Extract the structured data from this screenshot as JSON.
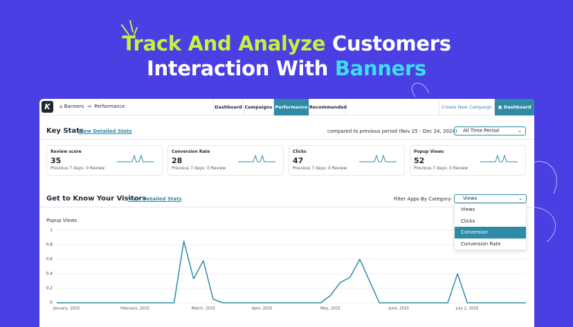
{
  "headline": {
    "line1_highlight": "Track And Analyze",
    "line1_rest": "Customers",
    "line2_rest": "Interaction With",
    "line2_highlight": "Banners"
  },
  "nav": {
    "logo": "K",
    "breadcrumb": [
      "Banners",
      "Performance"
    ],
    "tabs": [
      "Dashboard",
      "Campaigns",
      "Performance",
      "Recommended"
    ],
    "active_tab": 2,
    "create_link": "Create New Campaign",
    "dashboard_button": "Dashboard"
  },
  "key_stats": {
    "title": "Key Stats",
    "link": "View Detailed Stats",
    "comparison": "compared to previous period (Nov 25 - Dec 24, 2024)",
    "period": "All Time Period",
    "cards": [
      {
        "label": "Review score",
        "value": 35,
        "note": "Previous 7 days: 0 Review"
      },
      {
        "label": "Conversion Rate",
        "value": 28,
        "note": "Previous 7 days: 0 Review"
      },
      {
        "label": "Clicks",
        "value": 47,
        "note": "Previous 7 days: 0 Review"
      },
      {
        "label": "Popup Views",
        "value": 52,
        "note": "Previous 7 days: 0 Review"
      }
    ]
  },
  "visitors": {
    "title": "Get to Know Your Visitors",
    "link": "View Detailed Stats",
    "filter_label": "Filter Apps By Category:",
    "filter_value": "Views",
    "options": [
      "Views",
      "Clicks",
      "Conversion",
      "Conversion Rate"
    ],
    "highlighted_option": 2
  },
  "chart_data": {
    "type": "line",
    "y_label": "Popup Views",
    "categories": [
      null,
      "January, 2025",
      null,
      null,
      null,
      null,
      null,
      null,
      "February, 2025",
      null,
      null,
      null,
      null,
      null,
      null,
      "March, 2025",
      null,
      null,
      null,
      null,
      null,
      "April, 2025",
      null,
      null,
      null,
      null,
      null,
      null,
      "May, 2025",
      null,
      null,
      null,
      null,
      null,
      null,
      "June, 2025",
      null,
      null,
      null,
      null,
      null,
      null,
      "July 2, 2025",
      null,
      null,
      null,
      null,
      null,
      null
    ],
    "series": [
      {
        "name": "Popup Views",
        "color": "#2e8aa6",
        "values": [
          0,
          0,
          0,
          0,
          0,
          0,
          0,
          0,
          0,
          0,
          0,
          0,
          0,
          0.85,
          0.33,
          0.58,
          0.05,
          0,
          0,
          0,
          0,
          0,
          0,
          0,
          0,
          0,
          0,
          0,
          0.1,
          0.28,
          0.35,
          0.6,
          0.3,
          0,
          0,
          0,
          0,
          0,
          0,
          0,
          0,
          0.4,
          0,
          0,
          0,
          0,
          0,
          0,
          0
        ]
      }
    ],
    "ylim": [
      0,
      1
    ],
    "yticks": [
      0,
      0.2,
      0.4,
      0.6,
      0.8,
      1
    ],
    "grid": true
  }
}
